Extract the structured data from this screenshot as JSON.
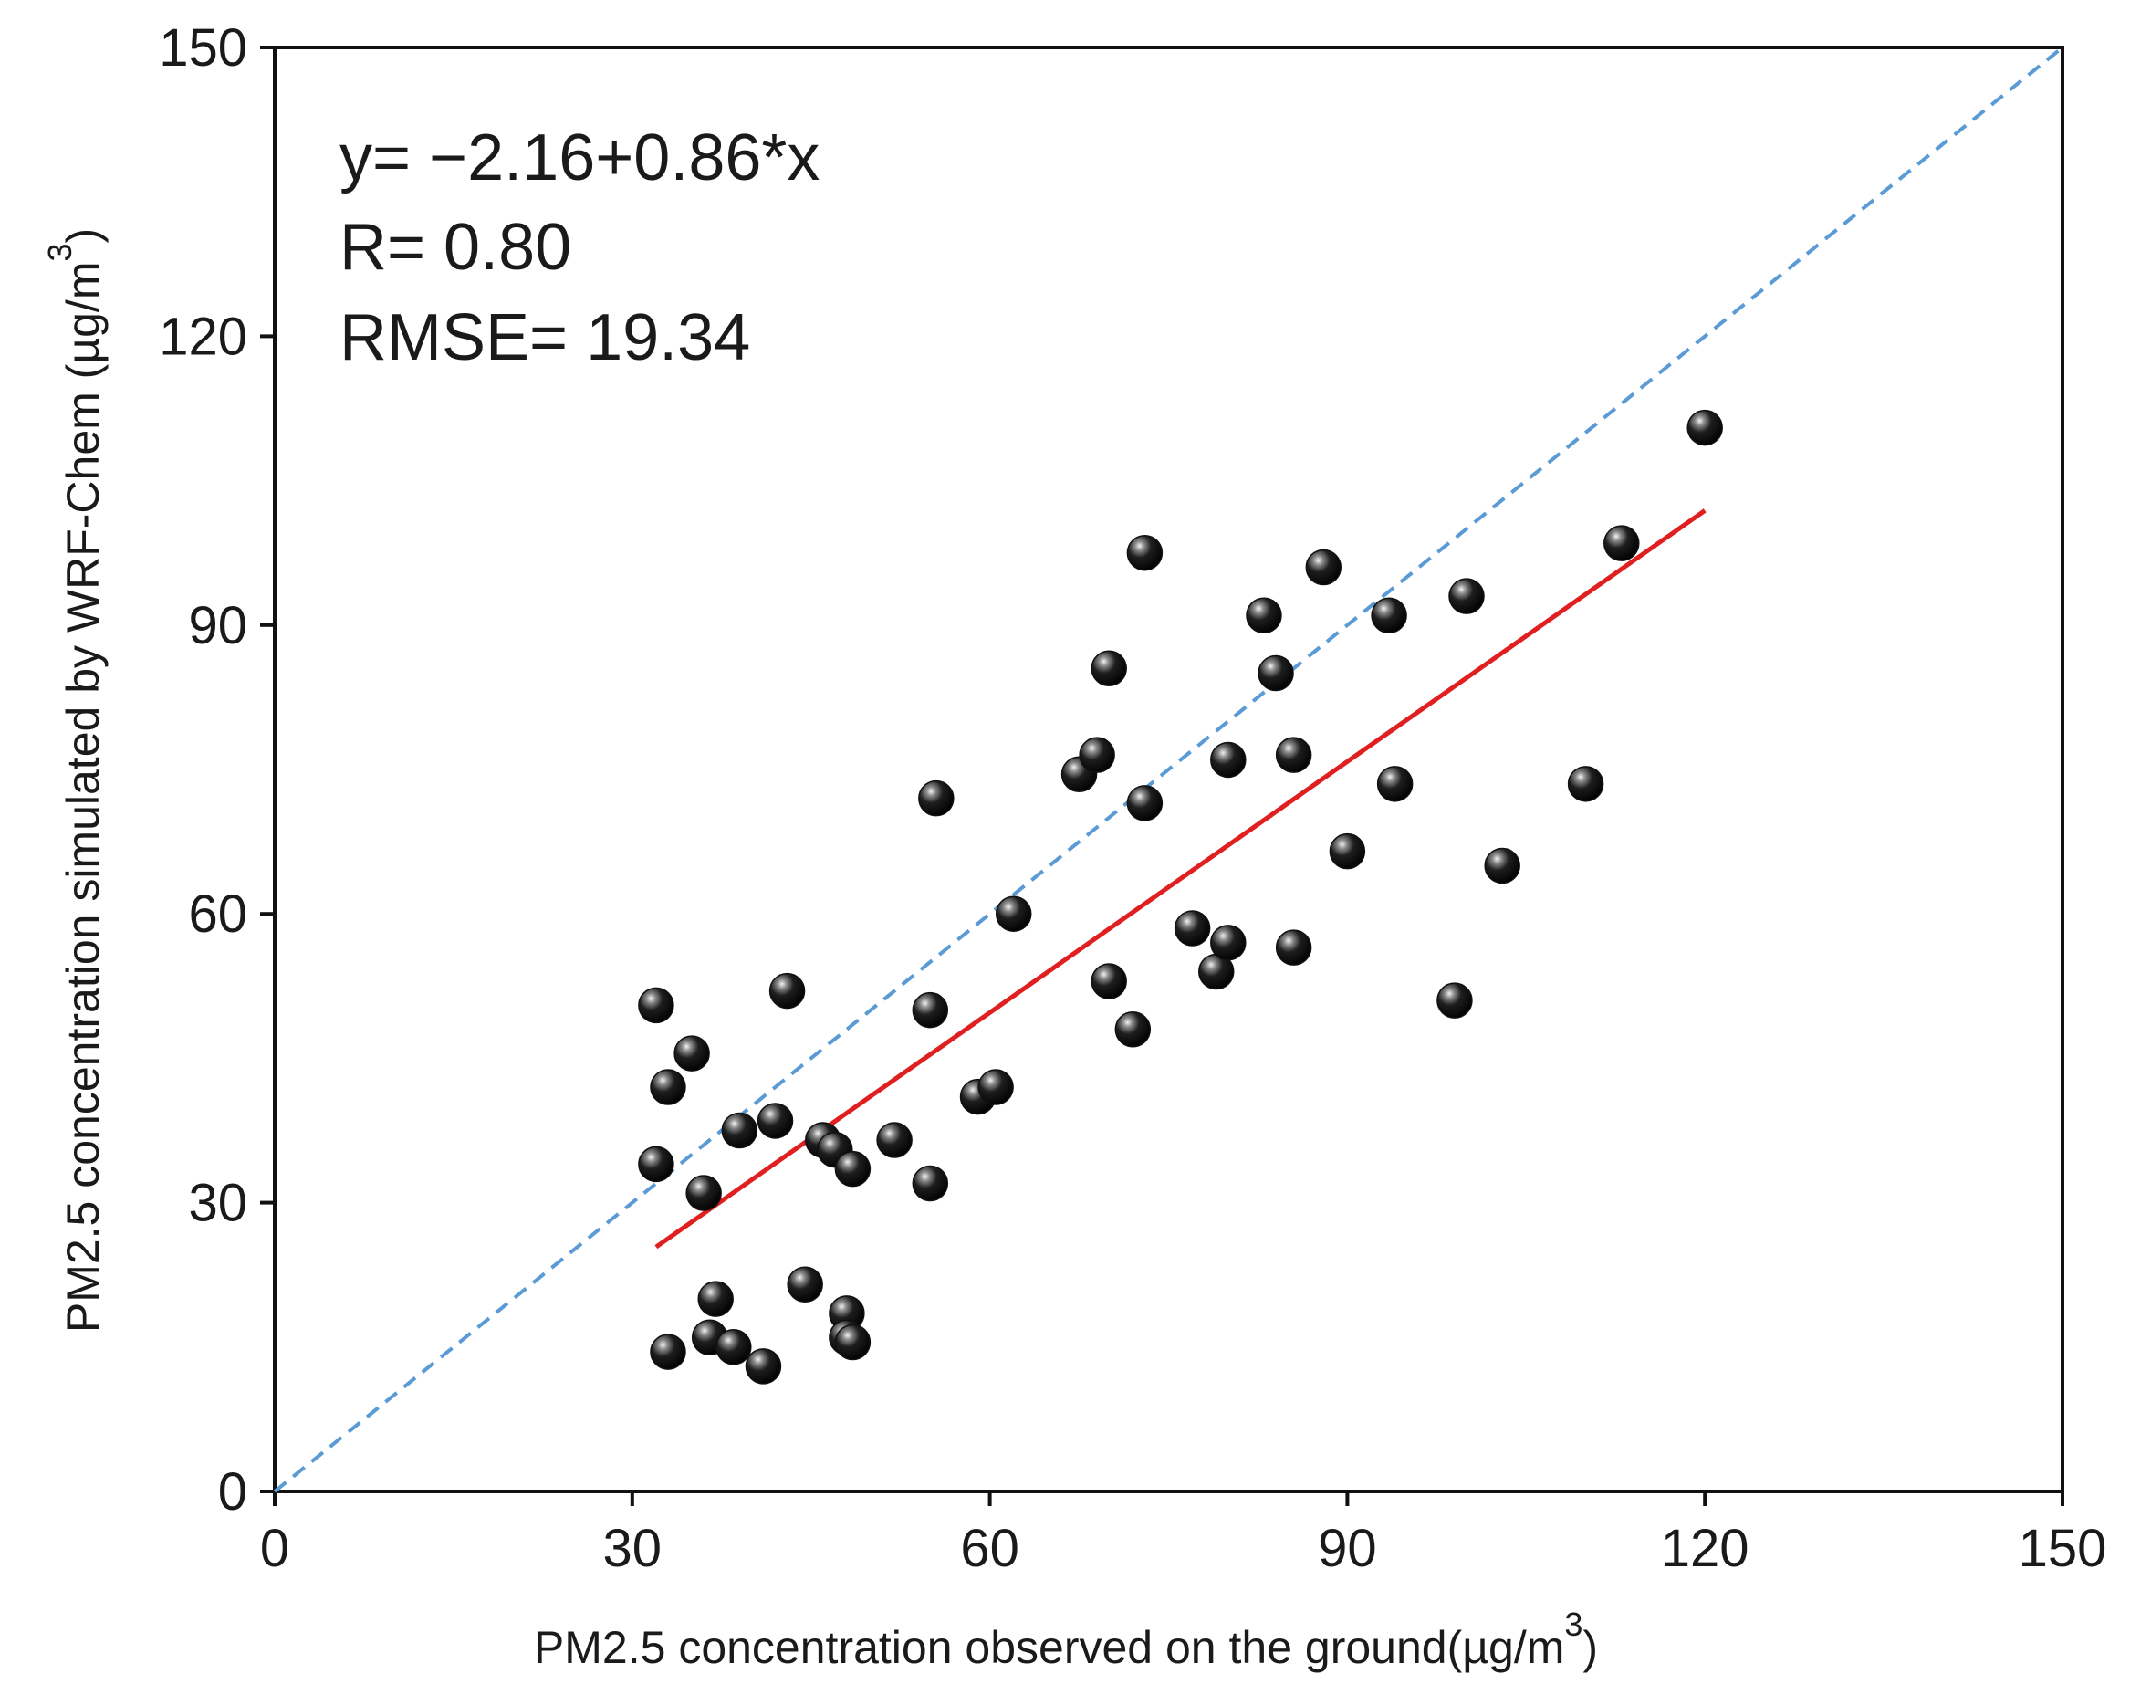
{
  "chart_data": {
    "type": "scatter",
    "title": "",
    "xlabel": "PM2.5 concentration observed on the ground(µg/m",
    "xlabel_superscript": "3",
    "xlabel_suffix": ")",
    "ylabel": "PM2.5 concentration simulated by WRF-Chem (µg/m",
    "ylabel_superscript": "3",
    "ylabel_suffix": ")",
    "xlim": [
      0,
      150
    ],
    "ylim": [
      0,
      150
    ],
    "xticks": [
      "0",
      "30",
      "60",
      "90",
      "120",
      "150"
    ],
    "yticks": [
      "0",
      "30",
      "60",
      "90",
      "120",
      "150"
    ],
    "grid": false,
    "annotations": {
      "equation": "y= −2.16+0.86*x",
      "r": "R= 0.80",
      "rmse": "RMSE= 19.34"
    },
    "reference_line": {
      "name": "1:1 line",
      "style": "dashed",
      "color": "#5b9bd5",
      "x": [
        0,
        150
      ],
      "y": [
        0,
        150
      ]
    },
    "fit_line": {
      "name": "regression",
      "color": "#e02020",
      "x": [
        32,
        120
      ],
      "y": [
        25.4,
        101.9
      ]
    },
    "points_color": "#111111",
    "series": [
      {
        "name": "sites",
        "points": [
          [
            32,
            50.5
          ],
          [
            32,
            34.0
          ],
          [
            33,
            14.5
          ],
          [
            33,
            42.0
          ],
          [
            35,
            45.5
          ],
          [
            36,
            31.0
          ],
          [
            36.5,
            16.0
          ],
          [
            37,
            20.0
          ],
          [
            38.5,
            15.0
          ],
          [
            39,
            37.5
          ],
          [
            41,
            13.0
          ],
          [
            42,
            38.5
          ],
          [
            43,
            52.0
          ],
          [
            44.5,
            21.5
          ],
          [
            46,
            36.5
          ],
          [
            47,
            35.5
          ],
          [
            48,
            18.5
          ],
          [
            48,
            16.0
          ],
          [
            48.5,
            33.5
          ],
          [
            48.5,
            15.5
          ],
          [
            52,
            36.5
          ],
          [
            55,
            32.0
          ],
          [
            55,
            50.0
          ],
          [
            55.5,
            72.0
          ],
          [
            59,
            41.0
          ],
          [
            60.5,
            42.0
          ],
          [
            62,
            60.0
          ],
          [
            67.5,
            74.5
          ],
          [
            69,
            76.5
          ],
          [
            70,
            53.0
          ],
          [
            70,
            85.5
          ],
          [
            72,
            48.0
          ],
          [
            73,
            97.5
          ],
          [
            73,
            71.5
          ],
          [
            77,
            58.5
          ],
          [
            79,
            54.0
          ],
          [
            80,
            57.0
          ],
          [
            80,
            76.0
          ],
          [
            83,
            91.0
          ],
          [
            84,
            85.0
          ],
          [
            85.5,
            56.5
          ],
          [
            85.5,
            76.5
          ],
          [
            88,
            96.0
          ],
          [
            90,
            66.5
          ],
          [
            93.5,
            91.0
          ],
          [
            94,
            73.5
          ],
          [
            99,
            51.0
          ],
          [
            100,
            93.0
          ],
          [
            103,
            65.0
          ],
          [
            110,
            73.5
          ],
          [
            113,
            98.5
          ],
          [
            120,
            110.5
          ]
        ]
      }
    ]
  }
}
